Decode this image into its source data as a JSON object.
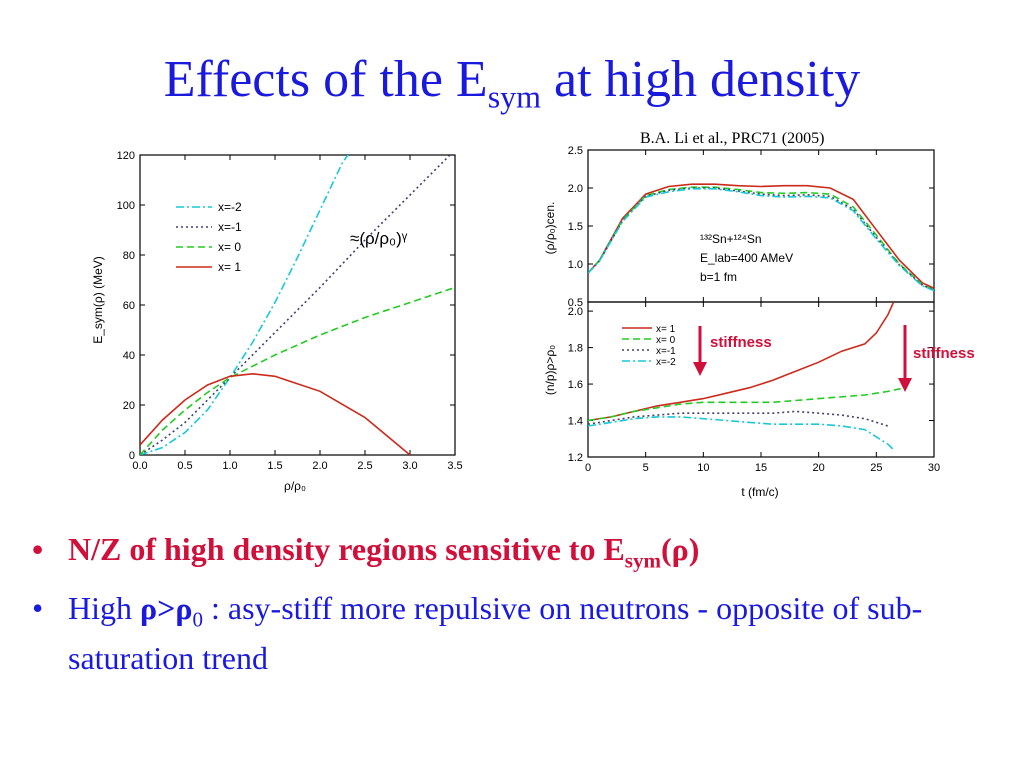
{
  "title": {
    "main": "Effects of the E",
    "sub": "sym",
    "rest": " at high density"
  },
  "citation": "B.A. Li et al., PRC71 (2005)",
  "bullets": [
    {
      "text_a": "N/Z of high density regions sensitive to E",
      "sub": "sym",
      "text_b": "(ρ)",
      "color": "#d0103a"
    },
    {
      "text_a": "High ",
      "bold_a": "ρ>ρ",
      "bold_sub": "0",
      "text_b": " : asy-stiff more repulsive on neutrons - opposite of sub-saturation trend",
      "color": "#1a1adf"
    }
  ],
  "annotations": {
    "stiffness_1": "stiffness",
    "stiffness_2": "stiffness",
    "power_law": "≈(ρ/ρ₀)ᵞ"
  },
  "chart_data": [
    {
      "type": "line",
      "xlabel": "ρ/ρ₀",
      "ylabel": "E_sym(ρ) (MeV)",
      "xlim": [
        0,
        3.5
      ],
      "ylim": [
        0,
        120
      ],
      "xticks": [
        0.0,
        0.5,
        1.0,
        1.5,
        2.0,
        2.5,
        3.0,
        3.5
      ],
      "xtick_labels": [
        "0.0",
        "0.5",
        "1.0",
        "1.5",
        "2.0",
        "2.5",
        "3.0",
        "3.5"
      ],
      "yticks": [
        0,
        20,
        40,
        60,
        80,
        100,
        120
      ],
      "ytick_labels": [
        "0",
        "20",
        "40",
        "60",
        "80",
        "100",
        "120"
      ],
      "legend_position": "top-left",
      "series": [
        {
          "name": "x=-2",
          "color": "#19c8d8",
          "dash": "dashdot",
          "x": [
            0,
            0.25,
            0.5,
            0.75,
            1.0,
            1.25,
            1.5,
            1.75,
            2.0,
            2.25,
            2.35
          ],
          "y": [
            0,
            3,
            9,
            18,
            31,
            45,
            61,
            79,
            98,
            117,
            122
          ]
        },
        {
          "name": "x=-1",
          "color": "#404070",
          "dash": "dot",
          "x": [
            0,
            0.25,
            0.5,
            0.75,
            1.0,
            1.5,
            2.0,
            2.5,
            3.0,
            3.5
          ],
          "y": [
            0,
            6,
            13,
            22,
            31,
            49,
            67,
            86,
            104,
            122
          ]
        },
        {
          "name": "x= 0",
          "color": "#22cc22",
          "dash": "dash",
          "x": [
            0,
            0.25,
            0.5,
            0.75,
            1.0,
            1.5,
            2.0,
            2.5,
            3.0,
            3.5
          ],
          "y": [
            0,
            10,
            18,
            25,
            31,
            40,
            48,
            55,
            61,
            67
          ]
        },
        {
          "name": "x= 1",
          "color": "#cc2a1a",
          "dash": "solid",
          "x": [
            0,
            0.25,
            0.5,
            0.75,
            1.0,
            1.25,
            1.5,
            2.0,
            2.5,
            3.0
          ],
          "y": [
            4,
            14,
            22,
            28,
            31.5,
            32.5,
            31.5,
            25.5,
            15,
            0
          ]
        }
      ]
    },
    {
      "type": "line",
      "xlabel": "",
      "ylabel": "(ρ/ρ₀)cen.",
      "xlim": [
        0,
        30
      ],
      "ylim": [
        0.5,
        2.5
      ],
      "xticks": [
        0,
        5,
        10,
        15,
        20,
        25,
        30
      ],
      "yticks": [
        0.5,
        1.0,
        1.5,
        2.0,
        2.5
      ],
      "ytick_labels": [
        "0.5",
        "1.0",
        "1.5",
        "2.0",
        "2.5"
      ],
      "inset_text": [
        "¹³²Sn+¹²⁴Sn",
        "E_lab=400 AMeV",
        "b=1 fm"
      ],
      "series": [
        {
          "name": "x= 1",
          "color": "#cc2a1a",
          "dash": "solid",
          "x": [
            0,
            1,
            3,
            5,
            7,
            9,
            11,
            13,
            15,
            17,
            19,
            21,
            23,
            25,
            27,
            29,
            30
          ],
          "y": [
            0.88,
            1.05,
            1.6,
            1.92,
            2.02,
            2.05,
            2.05,
            2.03,
            2.02,
            2.03,
            2.03,
            2.0,
            1.85,
            1.45,
            1.05,
            0.75,
            0.68
          ]
        },
        {
          "name": "x= 0",
          "color": "#22cc22",
          "dash": "dash",
          "x": [
            0,
            1,
            3,
            5,
            7,
            9,
            11,
            13,
            15,
            17,
            19,
            21,
            23,
            25,
            27,
            29,
            30
          ],
          "y": [
            0.88,
            1.05,
            1.58,
            1.9,
            1.98,
            2.01,
            2.01,
            1.98,
            1.94,
            1.93,
            1.94,
            1.92,
            1.75,
            1.38,
            1.0,
            0.73,
            0.66
          ]
        },
        {
          "name": "x=-1",
          "color": "#404070",
          "dash": "dot",
          "x": [
            0,
            1,
            3,
            5,
            7,
            9,
            11,
            13,
            15,
            17,
            19,
            21,
            23,
            25,
            27,
            29,
            30
          ],
          "y": [
            0.88,
            1.04,
            1.57,
            1.89,
            1.97,
            2.0,
            2.0,
            1.96,
            1.92,
            1.9,
            1.91,
            1.89,
            1.72,
            1.35,
            0.99,
            0.72,
            0.66
          ]
        },
        {
          "name": "x=-2",
          "color": "#19c8d8",
          "dash": "dashdot",
          "x": [
            0,
            1,
            3,
            5,
            7,
            9,
            11,
            13,
            15,
            17,
            19,
            21,
            23,
            25,
            27,
            29,
            30
          ],
          "y": [
            0.88,
            1.04,
            1.56,
            1.88,
            1.95,
            1.99,
            1.99,
            1.95,
            1.9,
            1.88,
            1.89,
            1.87,
            1.7,
            1.33,
            0.98,
            0.71,
            0.65
          ]
        }
      ]
    },
    {
      "type": "line",
      "xlabel": "t (fm/c)",
      "ylabel": "(n/p)ρ>ρ₀",
      "xlim": [
        0,
        30
      ],
      "ylim": [
        1.2,
        2.05
      ],
      "xticks": [
        0,
        5,
        10,
        15,
        20,
        25,
        30
      ],
      "xtick_labels": [
        "0",
        "5",
        "10",
        "15",
        "20",
        "25",
        "30"
      ],
      "yticks": [
        1.2,
        1.4,
        1.6,
        1.8,
        2.0
      ],
      "ytick_labels": [
        "1.2",
        "1.4",
        "1.6",
        "1.8",
        "2.0"
      ],
      "legend_position": "top-left",
      "series": [
        {
          "name": "x= 1",
          "color": "#cc2a1a",
          "dash": "solid",
          "x": [
            0,
            2,
            4,
            6,
            8,
            10,
            12,
            14,
            16,
            18,
            20,
            22,
            24,
            25,
            26,
            26.5
          ],
          "y": [
            1.4,
            1.42,
            1.45,
            1.48,
            1.5,
            1.52,
            1.55,
            1.58,
            1.62,
            1.67,
            1.72,
            1.78,
            1.82,
            1.88,
            1.98,
            2.05
          ]
        },
        {
          "name": "x= 0",
          "color": "#22cc22",
          "dash": "dash",
          "x": [
            0,
            2,
            4,
            6,
            8,
            10,
            12,
            14,
            16,
            18,
            20,
            22,
            24,
            26,
            27.5
          ],
          "y": [
            1.4,
            1.42,
            1.45,
            1.47,
            1.49,
            1.5,
            1.5,
            1.5,
            1.5,
            1.51,
            1.52,
            1.53,
            1.54,
            1.56,
            1.58
          ]
        },
        {
          "name": "x=-1",
          "color": "#404070",
          "dash": "dot",
          "x": [
            0,
            2,
            4,
            6,
            8,
            10,
            12,
            14,
            16,
            18,
            20,
            22,
            24,
            26
          ],
          "y": [
            1.38,
            1.4,
            1.42,
            1.43,
            1.44,
            1.44,
            1.44,
            1.44,
            1.44,
            1.45,
            1.44,
            1.43,
            1.41,
            1.37
          ]
        },
        {
          "name": "x=-2",
          "color": "#19c8d8",
          "dash": "dashdot",
          "x": [
            0,
            2,
            4,
            6,
            8,
            10,
            12,
            14,
            16,
            18,
            20,
            22,
            24,
            26,
            26.5
          ],
          "y": [
            1.37,
            1.39,
            1.41,
            1.42,
            1.42,
            1.41,
            1.4,
            1.39,
            1.38,
            1.38,
            1.38,
            1.37,
            1.35,
            1.27,
            1.24
          ]
        }
      ]
    }
  ]
}
